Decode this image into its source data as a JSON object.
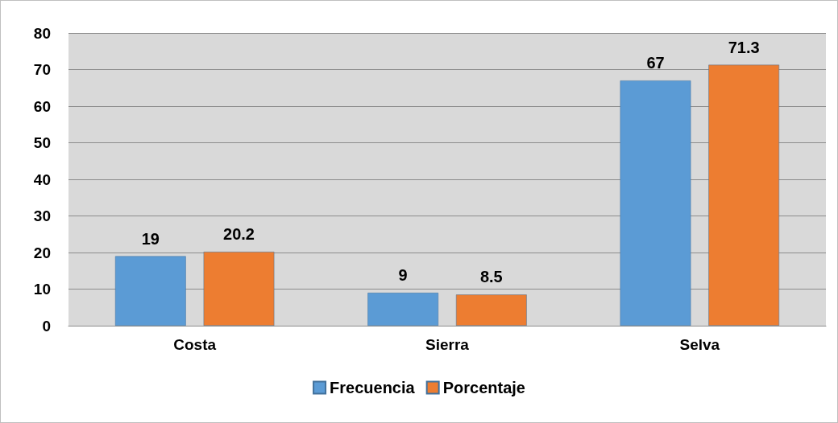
{
  "chart_data": {
    "type": "bar",
    "categories": [
      "Costa",
      "Sierra",
      "Selva"
    ],
    "series": [
      {
        "name": "Frecuencia",
        "color": "#5b9bd5",
        "values": [
          19,
          9,
          67
        ]
      },
      {
        "name": "Porcentaje",
        "color": "#ed7d31",
        "values": [
          20.2,
          8.5,
          71.3
        ]
      }
    ],
    "ylim": [
      0,
      80
    ],
    "yticks": [
      0,
      10,
      20,
      30,
      40,
      50,
      60,
      70,
      80
    ],
    "grid": "y",
    "legend": "bottom",
    "data_labels": true
  }
}
